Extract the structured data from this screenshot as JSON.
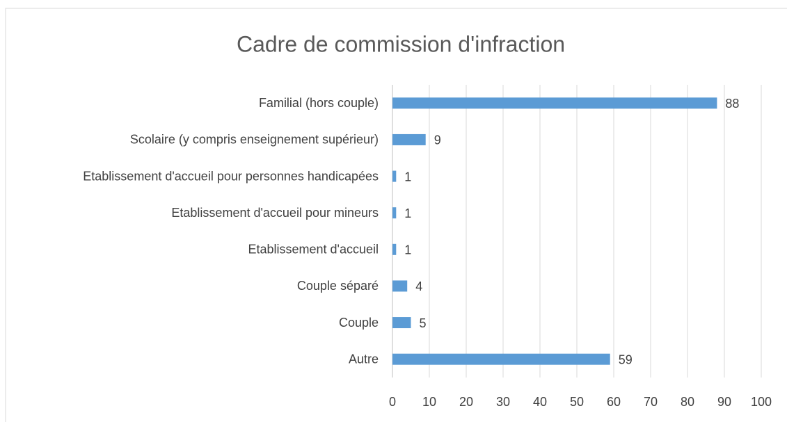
{
  "chart_data": {
    "type": "bar",
    "orientation": "horizontal",
    "title": "Cadre de commission d'infraction",
    "categories": [
      "Familial (hors couple)",
      "Scolaire (y compris enseignement supérieur)",
      "Etablissement d'accueil pour personnes handicapées",
      "Etablissement d'accueil pour mineurs",
      "Etablissement d'accueil",
      "Couple séparé",
      "Couple",
      "Autre"
    ],
    "values": [
      88,
      9,
      1,
      1,
      1,
      4,
      5,
      59
    ],
    "color": "#5b9bd5",
    "xlim": [
      0,
      100
    ],
    "xticks": [
      0,
      10,
      20,
      30,
      40,
      50,
      60,
      70,
      80,
      90,
      100
    ],
    "grid": true
  }
}
